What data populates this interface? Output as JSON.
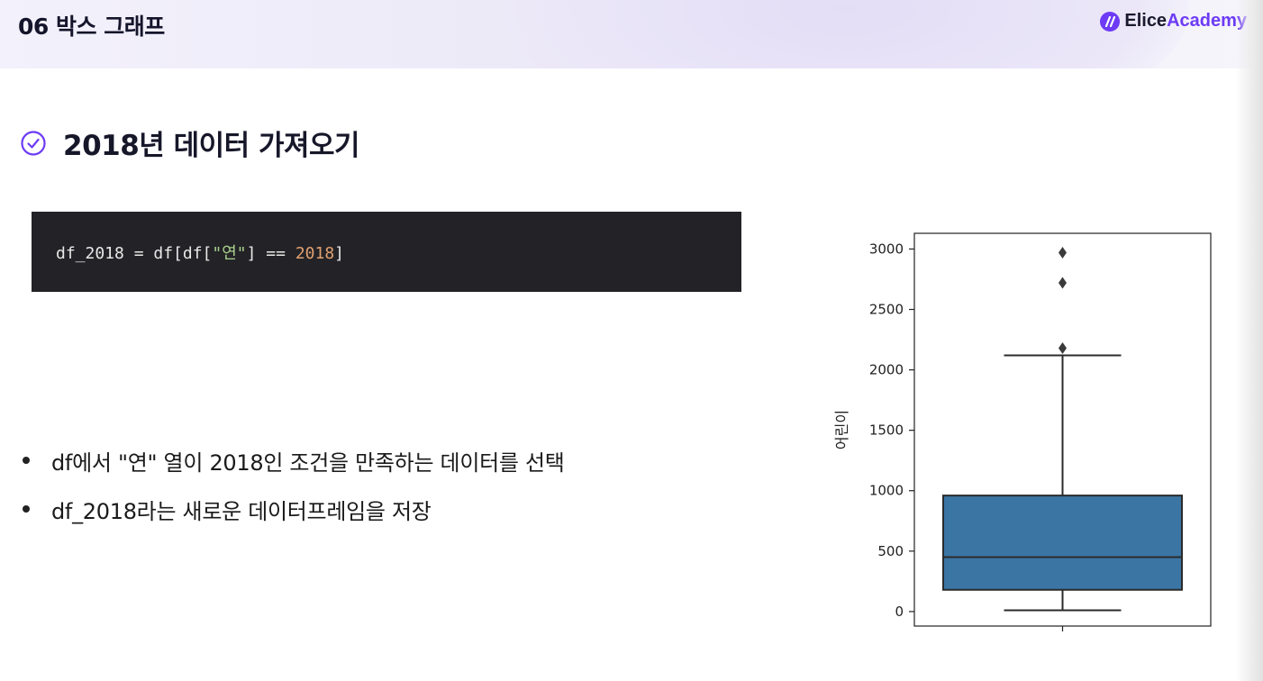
{
  "header": {
    "section_title": "06 박스 그래프",
    "logo_left": "Elice",
    "logo_right": "Academy",
    "logo_icon": "elice-logo-mark"
  },
  "slide": {
    "heading": "2018년 데이터 가져오기",
    "heading_icon": "check-circle-icon",
    "code": {
      "part1": "df_2018 = df[df[",
      "str": "\"연\"",
      "part2": "] == ",
      "num": "2018",
      "part3": "]"
    },
    "bullets": [
      "df에서 \"연\" 열이 2018인 조건을 만족하는 데이터를 선택",
      "df_2018라는 새로운 데이터프레임을 저장"
    ]
  },
  "colors": {
    "accent": "#6d3bf5",
    "box_fill": "#3a75a4",
    "code_bg": "#232327"
  },
  "chart_data": {
    "type": "boxplot",
    "title": "",
    "xlabel": "",
    "ylabel": "어린이",
    "ylim": [
      -120,
      3130
    ],
    "yticks": [
      0,
      500,
      1000,
      1500,
      2000,
      2500,
      3000
    ],
    "yticklabels": [
      "0",
      "500",
      "1000",
      "1500",
      "2000",
      "2500",
      "3000"
    ],
    "series": [
      {
        "whisker_low": 10,
        "q1": 180,
        "median": 450,
        "q3": 960,
        "whisker_high": 2120,
        "outliers": [
          2180,
          2720,
          2970
        ]
      }
    ],
    "grid": false
  }
}
